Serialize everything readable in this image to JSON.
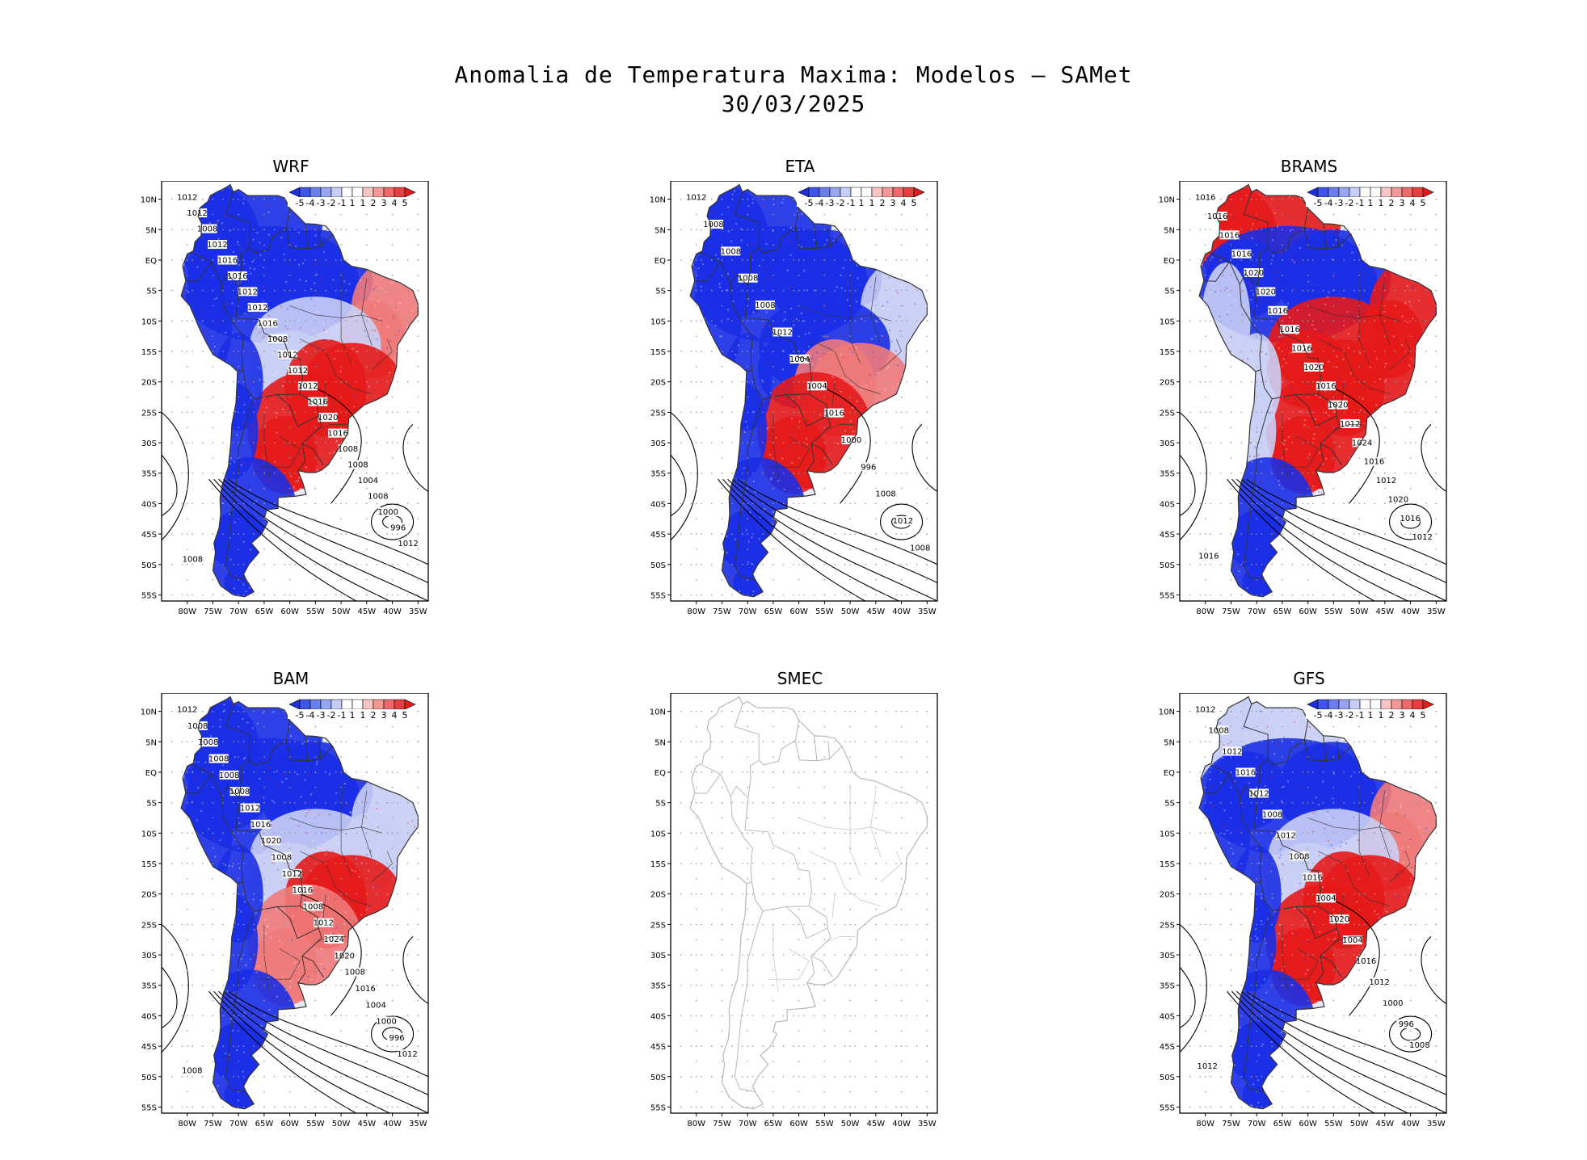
{
  "title": {
    "line1": "Anomalia de Temperatura Maxima: Modelos — SAMet",
    "line2": "30/03/2025"
  },
  "axes": {
    "lat_labels": [
      "10N",
      "5N",
      "EQ",
      "5S",
      "10S",
      "15S",
      "20S",
      "25S",
      "30S",
      "35S",
      "40S",
      "45S",
      "50S",
      "55S"
    ],
    "lon_labels": [
      "80W",
      "75W",
      "70W",
      "65W",
      "60W",
      "55W",
      "50W",
      "45W",
      "40W",
      "35W"
    ]
  },
  "colorbar": {
    "labels": [
      "-5",
      "-4",
      "-3",
      "-2",
      "-1",
      "1",
      "1",
      "2",
      "3",
      "4",
      "5"
    ],
    "colors": [
      "#1d2fe0",
      "#3f55e6",
      "#6a7eee",
      "#97a6f3",
      "#c5cdf8",
      "#ffffff",
      "#ffffff",
      "#f8c5c5",
      "#f39797",
      "#ee6a6a",
      "#e63f3f",
      "#e01d1d"
    ]
  },
  "colors": {
    "cold": "#1a2fe6",
    "warm": "#e61a1a",
    "neutral": "#f2f2f8",
    "border": "#333333",
    "smec_border": "#b8b8b8",
    "grid": "#9a9a9a"
  },
  "panels": [
    {
      "id": "wrf",
      "title": "WRF",
      "has_data": true,
      "regions": {
        "north": "cold",
        "amazon": "cold",
        "northeast": "mixed_warm",
        "central": "mixed",
        "southeast": "warm",
        "south": "warm",
        "andes": "cold",
        "patagonia": "cold"
      },
      "isobar_labels": [
        "1012",
        "1012",
        "1008",
        "1012",
        "1016",
        "1016",
        "1012",
        "1012",
        "1016",
        "1008",
        "1012",
        "1012",
        "1012",
        "1016",
        "1020",
        "1016",
        "1008",
        "1008",
        "1004",
        "1008",
        "1000",
        "996",
        "1012",
        "1008"
      ]
    },
    {
      "id": "eta",
      "title": "ETA",
      "has_data": true,
      "regions": {
        "north": "cold",
        "amazon": "cold",
        "northeast": "mixed",
        "central": "cold",
        "southeast": "mixed_warm",
        "south": "warm",
        "andes": "cold",
        "patagonia": "cold"
      },
      "isobar_labels": [
        "1012",
        "1008",
        "1008",
        "1008",
        "1008",
        "1012",
        "1004",
        "1004",
        "1016",
        "1000",
        "996",
        "1008",
        "1012",
        "1008"
      ]
    },
    {
      "id": "brams",
      "title": "BRAMS",
      "has_data": true,
      "regions": {
        "north": "warm",
        "amazon": "cold",
        "northeast": "warm",
        "central": "warm",
        "southeast": "warm",
        "south": "warm",
        "andes": "mixed",
        "patagonia": "cold"
      },
      "isobar_labels": [
        "1016",
        "1016",
        "1016",
        "1016",
        "1020",
        "1020",
        "1016",
        "1016",
        "1016",
        "1020",
        "1016",
        "1020",
        "1012",
        "1024",
        "1016",
        "1012",
        "1020",
        "1016",
        "1012",
        "1016"
      ]
    },
    {
      "id": "bam",
      "title": "BAM",
      "has_data": true,
      "regions": {
        "north": "cold",
        "amazon": "cold",
        "northeast": "mixed",
        "central": "mixed",
        "southeast": "warm",
        "south": "mixed_warm",
        "andes": "cold",
        "patagonia": "cold"
      },
      "isobar_labels": [
        "1012",
        "1008",
        "1008",
        "1008",
        "1008",
        "1008",
        "1012",
        "1016",
        "1020",
        "1008",
        "1012",
        "1016",
        "1008",
        "1012",
        "1024",
        "1020",
        "1008",
        "1016",
        "1004",
        "1000",
        "996",
        "1012",
        "1008"
      ]
    },
    {
      "id": "smec",
      "title": "SMEC",
      "has_data": false,
      "regions": {},
      "isobar_labels": []
    },
    {
      "id": "gfs",
      "title": "GFS",
      "has_data": true,
      "regions": {
        "north": "mixed",
        "amazon": "cold",
        "northeast": "mixed_warm",
        "central": "mixed",
        "southeast": "warm",
        "south": "warm",
        "andes": "cold",
        "patagonia": "cold"
      },
      "isobar_labels": [
        "1012",
        "1008",
        "1012",
        "1016",
        "1012",
        "1008",
        "1012",
        "1008",
        "1016",
        "1004",
        "1020",
        "1004",
        "1016",
        "1012",
        "1000",
        "996",
        "1008",
        "1012"
      ]
    }
  ]
}
